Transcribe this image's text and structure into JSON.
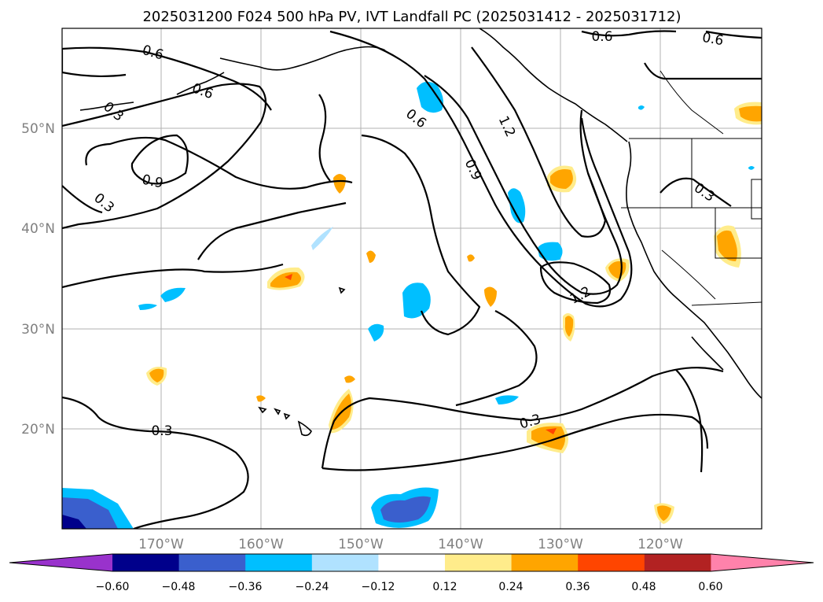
{
  "title": "2025031200 F024 500 hPa PV, IVT Landfall PC (2025031412 - 2025031712)",
  "map": {
    "lon_ticks": [
      "170°W",
      "160°W",
      "150°W",
      "140°W",
      "130°W",
      "120°W"
    ],
    "lat_ticks": [
      "50°N",
      "40°N",
      "30°N",
      "20°N"
    ],
    "contour_labels": [
      "0.6",
      "0.6",
      "0.6",
      "0.3",
      "0.6",
      "1.2",
      "0.6",
      "0.9",
      "0.9",
      "0.3",
      "0.3",
      "1.2",
      "0.3",
      "0.3"
    ]
  },
  "colorbar": {
    "ticks": [
      "−0.60",
      "−0.48",
      "−0.36",
      "−0.24",
      "−0.12",
      "0.12",
      "0.24",
      "0.36",
      "0.48",
      "0.60"
    ],
    "colors": [
      "#9932cc",
      "#00008b",
      "#3a5fcd",
      "#00bfff",
      "#b0e2ff",
      "#ffffff",
      "#ffec8b",
      "#ffa500",
      "#ff4500",
      "#b22222",
      "#ff82ab"
    ]
  }
}
